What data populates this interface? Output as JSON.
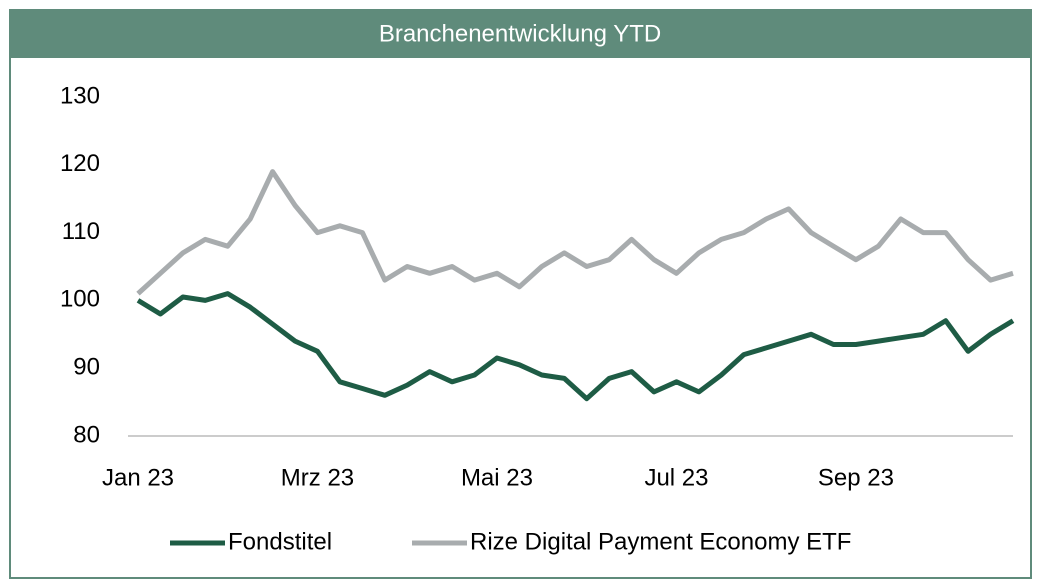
{
  "chart_data": {
    "type": "line",
    "title": "Branchenentwicklung YTD",
    "categories": [
      "Jan 23",
      null,
      null,
      null,
      null,
      null,
      null,
      null,
      "Mrz 23",
      null,
      null,
      null,
      null,
      null,
      null,
      null,
      "Mai 23",
      null,
      null,
      null,
      null,
      null,
      null,
      null,
      "Jul 23",
      null,
      null,
      null,
      null,
      null,
      null,
      null,
      "Sep 23",
      null,
      null,
      null,
      null,
      null,
      null,
      null
    ],
    "series": [
      {
        "name": "Fondstitel",
        "color": "#1e5c45",
        "values": [
          100,
          98,
          100.5,
          100,
          101,
          99,
          96.5,
          94,
          92.5,
          88,
          87,
          86,
          87.5,
          89.5,
          88,
          89,
          91.5,
          90.5,
          89,
          88.5,
          85.5,
          88.5,
          89.5,
          86.5,
          88,
          86.5,
          89,
          92,
          93,
          94,
          95,
          93.5,
          93.5,
          94,
          94.5,
          95,
          97,
          92.5,
          95,
          97
        ]
      },
      {
        "name": "Rize Digital Payment Economy ETF",
        "color": "#a8acae",
        "values": [
          101,
          104,
          107,
          109,
          108,
          112,
          119,
          114,
          110,
          111,
          110,
          103,
          105,
          104,
          105,
          103,
          104,
          102,
          105,
          107,
          105,
          106,
          109,
          106,
          104,
          107,
          109,
          110,
          112,
          113.5,
          110,
          108,
          106,
          108,
          112,
          110,
          110,
          106,
          103,
          104
        ]
      }
    ],
    "ylim": [
      80,
      130
    ],
    "yticks": [
      80,
      90,
      100,
      110,
      120,
      130
    ],
    "grid": false,
    "legend": "bottom"
  }
}
